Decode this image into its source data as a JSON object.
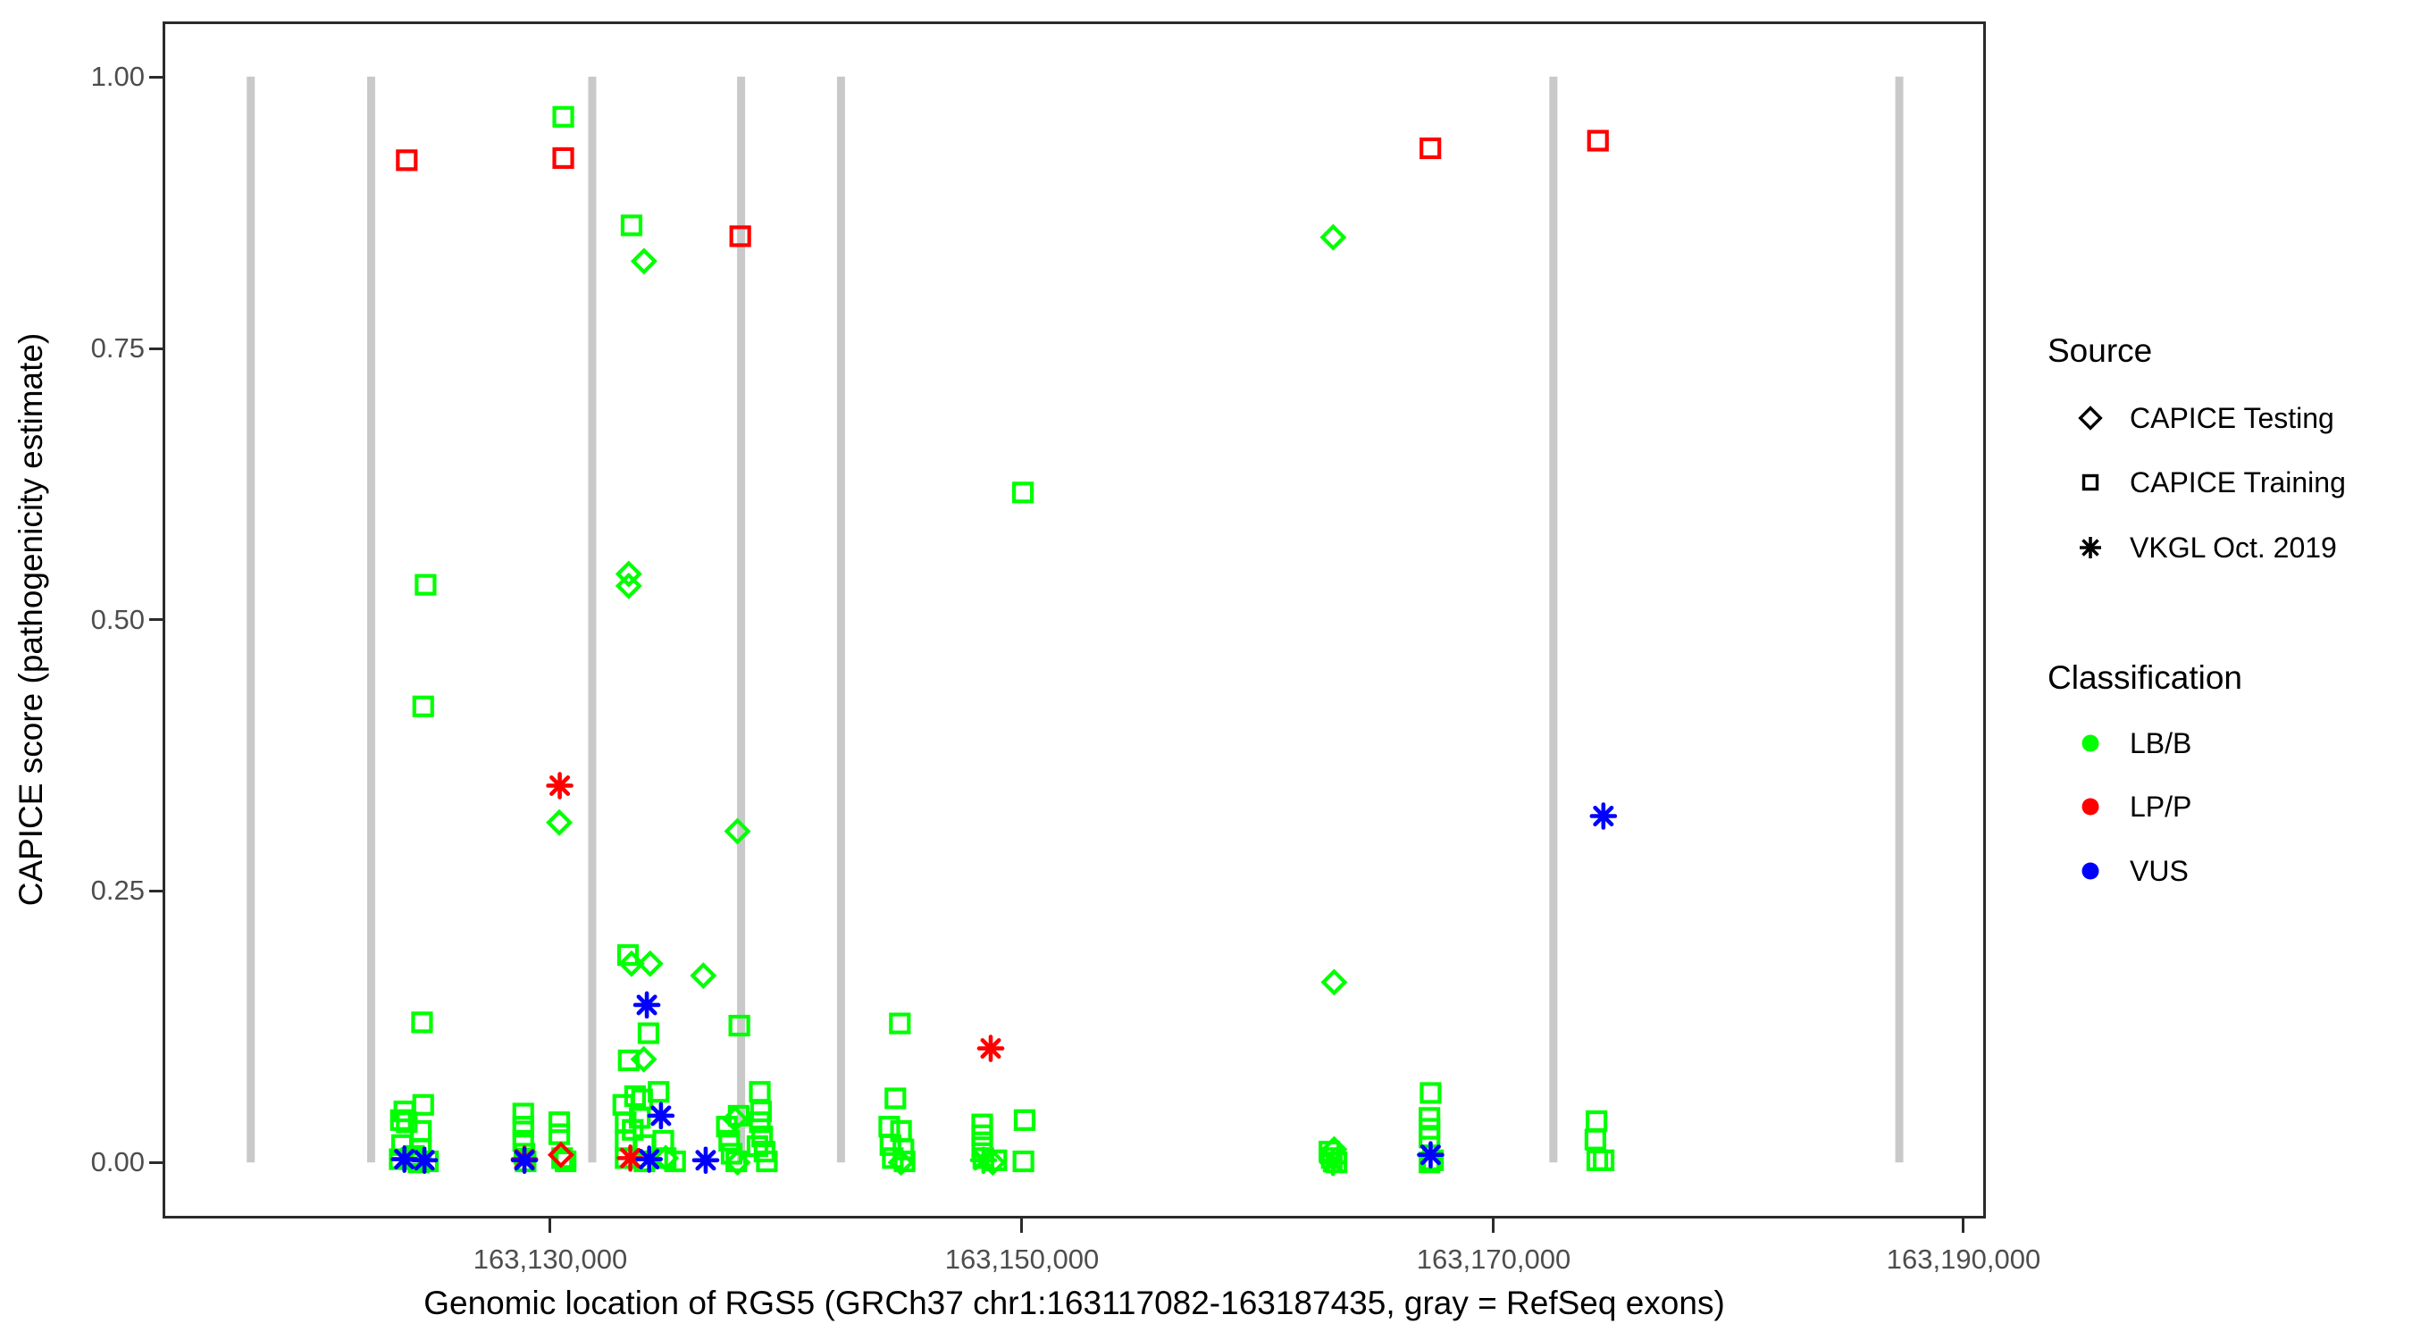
{
  "figure": {
    "y_axis": {
      "title": "CAPICE score (pathogenicity estimate)",
      "ticks": [
        {
          "label": "0.00",
          "value": 0.0
        },
        {
          "label": "0.25",
          "value": 0.25
        },
        {
          "label": "0.50",
          "value": 0.5
        },
        {
          "label": "0.75",
          "value": 0.75
        },
        {
          "label": "1.00",
          "value": 1.0
        }
      ]
    },
    "x_axis": {
      "title": "Genomic location of RGS5 (GRCh37 chr1:163117082-163187435, gray = RefSeq exons)",
      "ticks": [
        {
          "label": "163,130,000",
          "value": 163130000
        },
        {
          "label": "163,150,000",
          "value": 163150000
        },
        {
          "label": "163,170,000",
          "value": 163170000
        },
        {
          "label": "163,190,000",
          "value": 163190000
        }
      ]
    },
    "legend": {
      "source": {
        "title": "Source",
        "items": [
          {
            "label": "CAPICE Testing",
            "marker": "diamond"
          },
          {
            "label": "CAPICE Training",
            "marker": "square"
          },
          {
            "label": "VKGL Oct. 2019",
            "marker": "asterisk"
          }
        ]
      },
      "classification": {
        "title": "Classification",
        "items": [
          {
            "label": "LB/B",
            "color": "#00FF00"
          },
          {
            "label": "LP/P",
            "color": "#FF0000"
          },
          {
            "label": "VUS",
            "color": "#0000FF"
          }
        ]
      }
    }
  },
  "chart_data": {
    "type": "scatter",
    "title": "",
    "xlabel": "Genomic location of RGS5 (GRCh37 chr1:163117082-163187435, gray = RefSeq exons)",
    "ylabel": "CAPICE score (pathogenicity estimate)",
    "x_range": [
      163113564,
      163190953
    ],
    "y_range": [
      -0.05,
      1.05
    ],
    "grid": false,
    "legend_position": "right",
    "exon_color": "#C9C9C9",
    "exons_bp": [
      163117272,
      163122386,
      163131780,
      163138106,
      163142349,
      163172615,
      163187312
    ],
    "class_codes": {
      "B": "LB/B",
      "P": "LP/P",
      "U": "VUS"
    },
    "class_colors": {
      "LB/B": "#00FF00",
      "LP/P": "#FF0000",
      "VUS": "#0000FF"
    },
    "source_codes": {
      "S": "CAPICE Training",
      "D": "CAPICE Testing",
      "A": "VKGL Oct. 2019"
    },
    "source_markers": {
      "CAPICE Training": "square",
      "CAPICE Testing": "diamond",
      "VKGL Oct. 2019": "asterisk"
    },
    "points_format": [
      "bp",
      "score",
      "source_code",
      "class_code"
    ],
    "points": [
      [
        163123900,
        0.923,
        "S",
        "P"
      ],
      [
        163124700,
        0.532,
        "S",
        "B"
      ],
      [
        163124600,
        0.42,
        "S",
        "B"
      ],
      [
        163124550,
        0.129,
        "S",
        "B"
      ],
      [
        163123800,
        0.047,
        "S",
        "B"
      ],
      [
        163124600,
        0.053,
        "S",
        "B"
      ],
      [
        163123650,
        0.039,
        "S",
        "B"
      ],
      [
        163123900,
        0.037,
        "S",
        "B"
      ],
      [
        163124500,
        0.029,
        "S",
        "B"
      ],
      [
        163123700,
        0.016,
        "S",
        "B"
      ],
      [
        163124500,
        0.012,
        "S",
        "B"
      ],
      [
        163124100,
        0.004,
        "S",
        "B"
      ],
      [
        163124800,
        0.001,
        "S",
        "B"
      ],
      [
        163123600,
        0.003,
        "S",
        "B"
      ],
      [
        163124200,
        0.006,
        "S",
        "B"
      ],
      [
        163124400,
        0.0,
        "S",
        "B"
      ],
      [
        163128850,
        0.045,
        "S",
        "B"
      ],
      [
        163128850,
        0.033,
        "S",
        "B"
      ],
      [
        163128850,
        0.02,
        "S",
        "B"
      ],
      [
        163128900,
        0.008,
        "S",
        "B"
      ],
      [
        163128950,
        0.001,
        "S",
        "B"
      ],
      [
        163130550,
        0.963,
        "S",
        "B"
      ],
      [
        163130550,
        0.925,
        "S",
        "P"
      ],
      [
        163130380,
        0.037,
        "S",
        "B"
      ],
      [
        163130380,
        0.026,
        "S",
        "B"
      ],
      [
        163130500,
        0.004,
        "S",
        "B"
      ],
      [
        163130650,
        0.001,
        "S",
        "B"
      ],
      [
        163133450,
        0.863,
        "S",
        "B"
      ],
      [
        163133300,
        0.191,
        "S",
        "B"
      ],
      [
        163134170,
        0.119,
        "S",
        "B"
      ],
      [
        163133330,
        0.094,
        "S",
        "B"
      ],
      [
        163133100,
        0.053,
        "S",
        "B"
      ],
      [
        163133600,
        0.061,
        "S",
        "B"
      ],
      [
        163134600,
        0.065,
        "S",
        "B"
      ],
      [
        163133900,
        0.058,
        "S",
        "B"
      ],
      [
        163133200,
        0.037,
        "S",
        "B"
      ],
      [
        163133800,
        0.041,
        "S",
        "B"
      ],
      [
        163133500,
        0.03,
        "S",
        "B"
      ],
      [
        163133200,
        0.02,
        "S",
        "B"
      ],
      [
        163134000,
        0.016,
        "S",
        "B"
      ],
      [
        163134800,
        0.02,
        "S",
        "B"
      ],
      [
        163133200,
        0.004,
        "S",
        "B"
      ],
      [
        163134000,
        0.001,
        "S",
        "B"
      ],
      [
        163134900,
        0.004,
        "S",
        "B"
      ],
      [
        163135300,
        0.001,
        "S",
        "B"
      ],
      [
        163138030,
        0.126,
        "S",
        "B"
      ],
      [
        163138070,
        0.853,
        "S",
        "P"
      ],
      [
        163138900,
        0.065,
        "S",
        "B"
      ],
      [
        163138950,
        0.047,
        "S",
        "B"
      ],
      [
        163138000,
        0.043,
        "S",
        "B"
      ],
      [
        163137500,
        0.033,
        "S",
        "B"
      ],
      [
        163137600,
        0.02,
        "S",
        "B"
      ],
      [
        163137700,
        0.008,
        "S",
        "B"
      ],
      [
        163137900,
        0.001,
        "S",
        "B"
      ],
      [
        163138900,
        0.037,
        "S",
        "B"
      ],
      [
        163139000,
        0.024,
        "S",
        "B"
      ],
      [
        163139100,
        0.01,
        "S",
        "B"
      ],
      [
        163139200,
        0.001,
        "S",
        "B"
      ],
      [
        163138800,
        0.015,
        "S",
        "B"
      ],
      [
        163144850,
        0.128,
        "S",
        "B"
      ],
      [
        163144660,
        0.059,
        "S",
        "B"
      ],
      [
        163144400,
        0.033,
        "S",
        "B"
      ],
      [
        163144900,
        0.029,
        "S",
        "B"
      ],
      [
        163144450,
        0.016,
        "S",
        "B"
      ],
      [
        163145000,
        0.012,
        "S",
        "B"
      ],
      [
        163144550,
        0.004,
        "S",
        "B"
      ],
      [
        163145050,
        0.001,
        "S",
        "B"
      ],
      [
        163148350,
        0.035,
        "S",
        "B"
      ],
      [
        163148350,
        0.025,
        "S",
        "B"
      ],
      [
        163148350,
        0.014,
        "S",
        "B"
      ],
      [
        163148400,
        0.004,
        "S",
        "B"
      ],
      [
        163148950,
        0.002,
        "S",
        "B"
      ],
      [
        163150150,
        0.039,
        "S",
        "B"
      ],
      [
        163150100,
        0.001,
        "S",
        "B"
      ],
      [
        163150080,
        0.617,
        "S",
        "B"
      ],
      [
        163167390,
        0.934,
        "S",
        "P"
      ],
      [
        163167400,
        0.064,
        "S",
        "B"
      ],
      [
        163167350,
        0.041,
        "S",
        "B"
      ],
      [
        163167350,
        0.031,
        "S",
        "B"
      ],
      [
        163167350,
        0.023,
        "S",
        "B"
      ],
      [
        163167350,
        0.0,
        "S",
        "B"
      ],
      [
        163167500,
        0.002,
        "S",
        "B"
      ],
      [
        163174510,
        0.941,
        "S",
        "P"
      ],
      [
        163174450,
        0.038,
        "S",
        "B"
      ],
      [
        163174400,
        0.021,
        "S",
        "B"
      ],
      [
        163174480,
        0.002,
        "S",
        "B"
      ],
      [
        163174750,
        0.002,
        "S",
        "B"
      ],
      [
        163163100,
        0.01,
        "S",
        "B"
      ],
      [
        163163200,
        0.004,
        "S",
        "B"
      ],
      [
        163163400,
        0.0,
        "S",
        "B"
      ],
      [
        163130380,
        0.313,
        "D",
        "B"
      ],
      [
        163133980,
        0.83,
        "D",
        "B"
      ],
      [
        163133330,
        0.542,
        "D",
        "B"
      ],
      [
        163133330,
        0.531,
        "D",
        "B"
      ],
      [
        163133450,
        0.183,
        "D",
        "B"
      ],
      [
        163134240,
        0.183,
        "D",
        "B"
      ],
      [
        163136500,
        0.172,
        "D",
        "B"
      ],
      [
        163133970,
        0.095,
        "D",
        "B"
      ],
      [
        163137950,
        0.305,
        "D",
        "B"
      ],
      [
        163130450,
        0.007,
        "D",
        "P"
      ],
      [
        163134900,
        0.004,
        "D",
        "B"
      ],
      [
        163137850,
        0.04,
        "D",
        "B"
      ],
      [
        163137950,
        0.0,
        "D",
        "B"
      ],
      [
        163144900,
        0.0,
        "D",
        "B"
      ],
      [
        163148800,
        0.0,
        "D",
        "B"
      ],
      [
        163163260,
        0.852,
        "D",
        "B"
      ],
      [
        163163300,
        0.166,
        "D",
        "B"
      ],
      [
        163163300,
        0.012,
        "D",
        "B"
      ],
      [
        163130400,
        0.347,
        "A",
        "P"
      ],
      [
        163134100,
        0.145,
        "A",
        "U"
      ],
      [
        163123800,
        0.003,
        "A",
        "U"
      ],
      [
        163124650,
        0.002,
        "A",
        "U"
      ],
      [
        163128900,
        0.003,
        "A",
        "P"
      ],
      [
        163128900,
        0.002,
        "A",
        "U"
      ],
      [
        163133400,
        0.004,
        "A",
        "P"
      ],
      [
        163134200,
        0.003,
        "A",
        "U"
      ],
      [
        163136600,
        0.002,
        "A",
        "U"
      ],
      [
        163134700,
        0.043,
        "A",
        "U"
      ],
      [
        163148400,
        0.002,
        "A",
        "B"
      ],
      [
        163163250,
        0.0,
        "A",
        "B"
      ],
      [
        163167400,
        0.007,
        "A",
        "U"
      ],
      [
        163174740,
        0.319,
        "A",
        "U"
      ],
      [
        163148710,
        0.105,
        "A",
        "P"
      ]
    ]
  }
}
